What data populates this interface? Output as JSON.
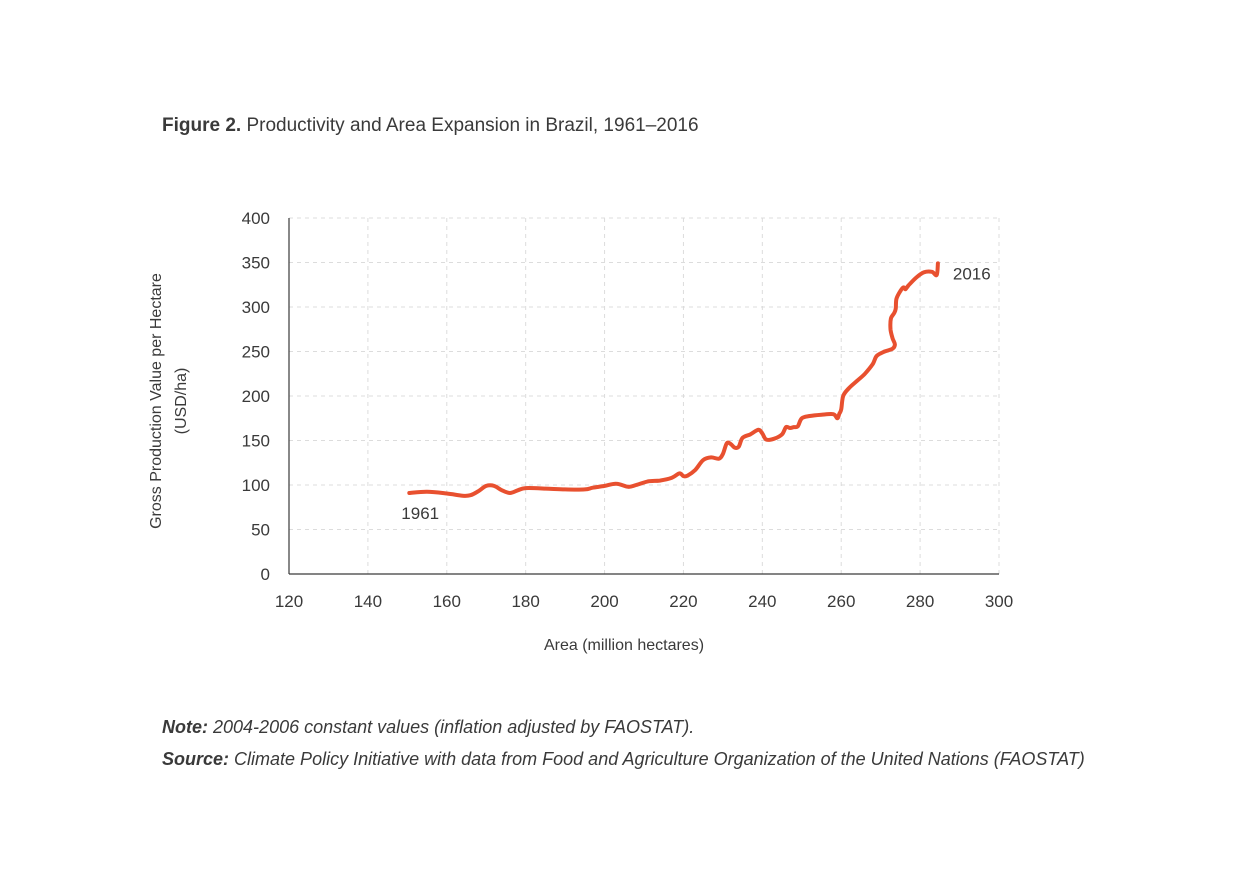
{
  "figure": {
    "label": "Figure 2.",
    "title": "Productivity and Area Expansion in Brazil, 1961–2016"
  },
  "note": {
    "label": "Note:",
    "text": "2004-2006 constant values (inflation adjusted by FAOSTAT)."
  },
  "source": {
    "label": "Source:",
    "text": "Climate Policy Initiative with data from Food and Agriculture Organization of the United Nations (FAOSTAT)"
  },
  "chart_data": {
    "type": "line",
    "xlabel": "Area (million hectares)",
    "ylabel": [
      "Gross Production Value per Hectare",
      "(USD/ha)"
    ],
    "xlim": [
      120,
      300
    ],
    "ylim": [
      0,
      400
    ],
    "xticks": [
      120,
      140,
      160,
      180,
      200,
      220,
      240,
      260,
      280,
      300
    ],
    "yticks": [
      0,
      50,
      100,
      150,
      200,
      250,
      300,
      350,
      400
    ],
    "grid": true,
    "line_color": "#e8502f",
    "annotations": [
      {
        "text": "1961",
        "x": 150.5,
        "y": 91
      },
      {
        "text": "2016",
        "x": 284.5,
        "y": 349
      }
    ],
    "series": [
      {
        "points": [
          [
            150.5,
            91
          ],
          [
            155,
            92.5
          ],
          [
            160,
            90.5
          ],
          [
            164,
            88
          ],
          [
            166,
            88.5
          ],
          [
            168,
            93
          ],
          [
            170,
            99
          ],
          [
            172,
            99
          ],
          [
            174,
            94
          ],
          [
            176,
            91
          ],
          [
            178,
            94
          ],
          [
            180,
            96.5
          ],
          [
            185,
            96
          ],
          [
            190,
            95
          ],
          [
            195,
            95
          ],
          [
            197,
            97
          ],
          [
            200,
            99
          ],
          [
            203,
            101.5
          ],
          [
            206,
            98
          ],
          [
            208,
            100
          ],
          [
            211,
            104
          ],
          [
            214,
            105
          ],
          [
            217,
            108
          ],
          [
            219,
            113
          ],
          [
            220,
            110
          ],
          [
            221,
            110.5
          ],
          [
            223,
            117
          ],
          [
            225,
            128
          ],
          [
            227,
            131
          ],
          [
            229,
            129.5
          ],
          [
            230,
            135
          ],
          [
            231,
            147
          ],
          [
            232,
            146
          ],
          [
            233,
            142
          ],
          [
            234,
            143
          ],
          [
            235,
            153
          ],
          [
            237,
            157
          ],
          [
            239,
            162
          ],
          [
            240,
            158
          ],
          [
            241,
            151
          ],
          [
            243,
            152
          ],
          [
            245,
            157
          ],
          [
            246,
            165
          ],
          [
            247,
            164
          ],
          [
            248,
            165
          ],
          [
            249,
            166
          ],
          [
            250,
            175
          ],
          [
            252,
            177.5
          ],
          [
            255,
            179
          ],
          [
            258,
            179.5
          ],
          [
            259,
            175
          ],
          [
            259.5,
            180
          ],
          [
            260,
            185
          ],
          [
            260.5,
            200
          ],
          [
            262,
            209
          ],
          [
            264,
            217
          ],
          [
            266,
            225
          ],
          [
            268,
            236
          ],
          [
            269,
            245
          ],
          [
            271,
            250
          ],
          [
            273,
            253
          ],
          [
            273.6,
            258
          ],
          [
            273,
            265
          ],
          [
            272.5,
            275
          ],
          [
            272.6,
            287
          ],
          [
            273.4,
            293
          ],
          [
            273.8,
            298
          ],
          [
            274,
            309
          ],
          [
            275,
            318
          ],
          [
            275.8,
            322
          ],
          [
            276.3,
            320
          ],
          [
            277,
            324
          ],
          [
            279,
            333
          ],
          [
            281,
            339
          ],
          [
            283,
            339.5
          ],
          [
            284.2,
            336
          ],
          [
            284.5,
            349
          ]
        ]
      }
    ]
  }
}
